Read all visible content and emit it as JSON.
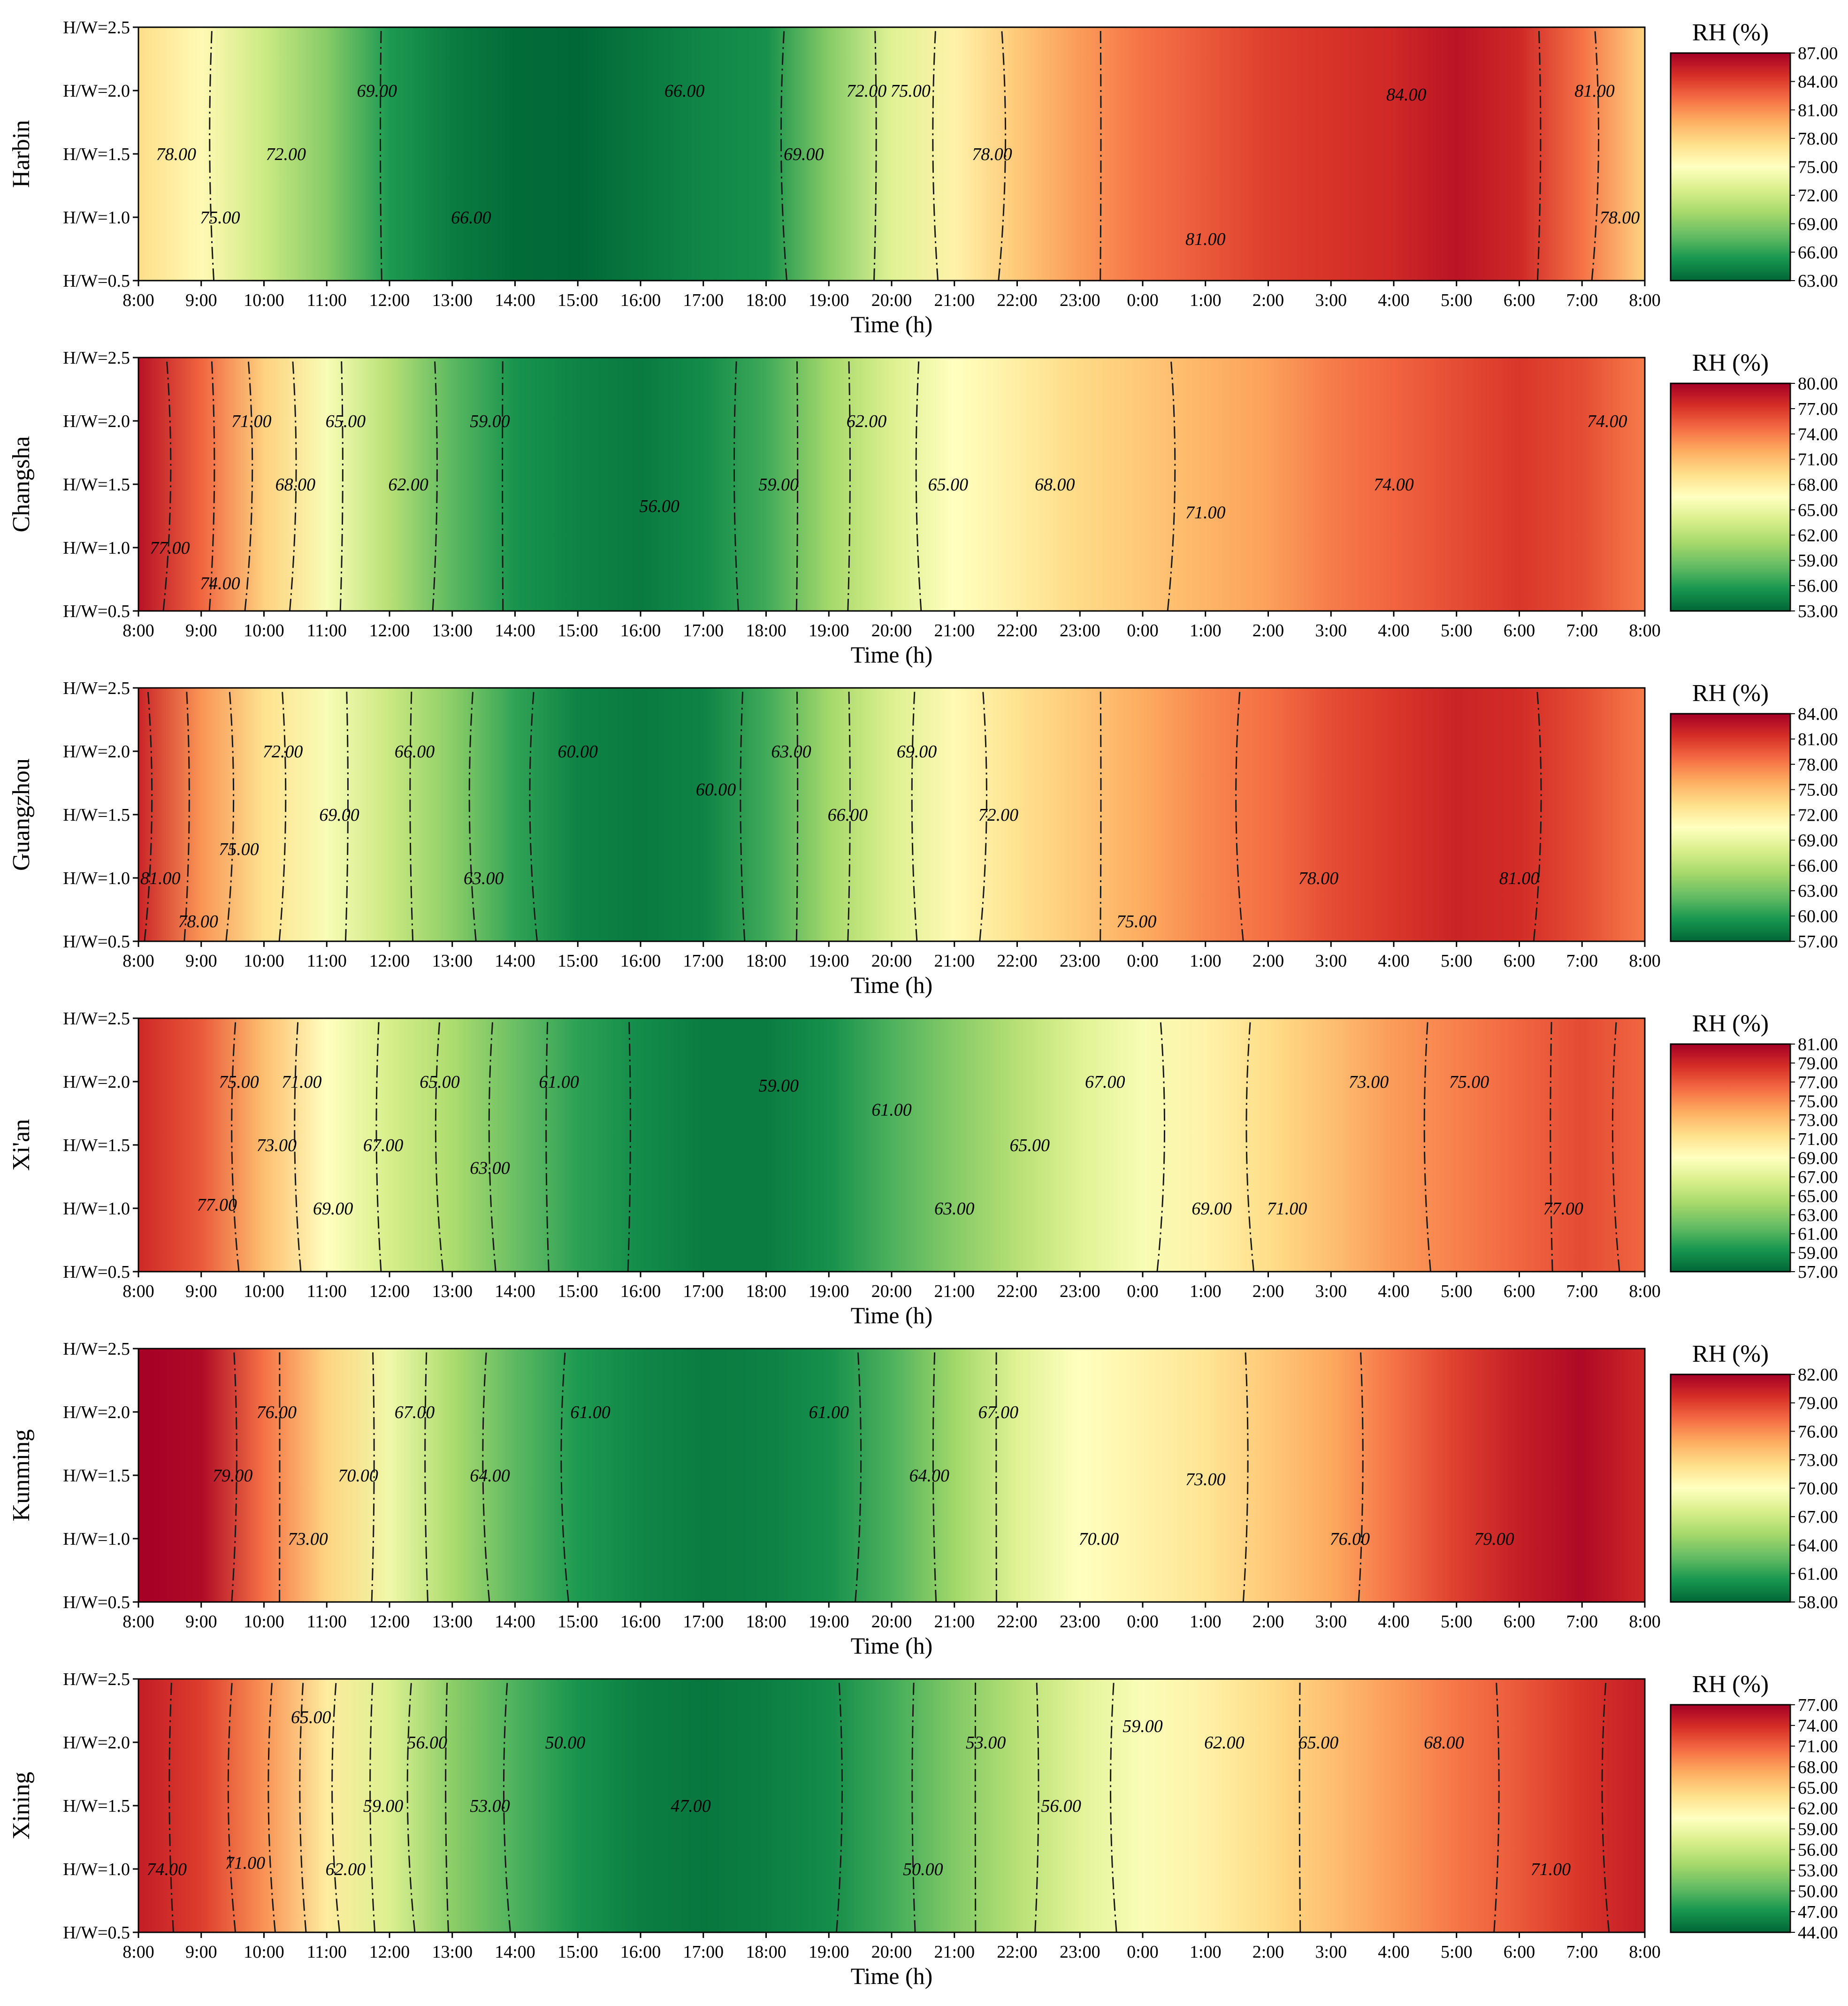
{
  "chart_data": {
    "type": "heatmap",
    "shared_axes": {
      "xlabel": "Time (h)",
      "x_ticks": [
        "8:00",
        "9:00",
        "10:00",
        "11:00",
        "12:00",
        "13:00",
        "14:00",
        "15:00",
        "16:00",
        "17:00",
        "18:00",
        "19:00",
        "20:00",
        "21:00",
        "22:00",
        "23:00",
        "0:00",
        "1:00",
        "2:00",
        "3:00",
        "4:00",
        "5:00",
        "6:00",
        "7:00",
        "8:00"
      ],
      "y_ticks": [
        "H/W=0.5",
        "H/W=1.0",
        "H/W=1.5",
        "H/W=2.0",
        "H/W=2.5"
      ],
      "y_values": [
        0.5,
        1.0,
        1.5,
        2.0,
        2.5
      ],
      "colorbar_title": "RH (%)",
      "colormap": [
        "#006837",
        "#1a9850",
        "#66bd63",
        "#a6d96a",
        "#d9ef8b",
        "#ffffbf",
        "#fee08b",
        "#fdae61",
        "#f46d43",
        "#d73027",
        "#a50026"
      ]
    },
    "panels": [
      {
        "city": "Harbin",
        "range": [
          63,
          87
        ],
        "colorbar_ticks": [
          "63.00",
          "66.00",
          "69.00",
          "72.00",
          "75.00",
          "78.00",
          "81.00",
          "84.00",
          "87.00"
        ],
        "rh_by_hour": [
          77.5,
          75.5,
          72,
          69,
          65.5,
          64,
          63.2,
          63,
          63.8,
          64.5,
          65,
          69,
          73,
          76,
          78.5,
          80.5,
          82,
          83,
          84,
          84.5,
          85,
          86,
          85,
          82,
          78
        ],
        "contour_labels": [
          {
            "text": "69.00",
            "x": 3.8,
            "y": 2.0
          },
          {
            "text": "66.00",
            "x": 8.7,
            "y": 2.0
          },
          {
            "text": "72.00",
            "x": 11.6,
            "y": 2.0
          },
          {
            "text": "75.00",
            "x": 12.3,
            "y": 2.0
          },
          {
            "text": "84.00",
            "x": 20.2,
            "y": 1.97
          },
          {
            "text": "81.00",
            "x": 23.2,
            "y": 2.0
          },
          {
            "text": "78.00",
            "x": 0.6,
            "y": 1.5
          },
          {
            "text": "72.00",
            "x": 2.35,
            "y": 1.5
          },
          {
            "text": "69.00",
            "x": 10.6,
            "y": 1.5
          },
          {
            "text": "78.00",
            "x": 13.6,
            "y": 1.5
          },
          {
            "text": "75.00",
            "x": 1.3,
            "y": 1.0
          },
          {
            "text": "66.00",
            "x": 5.3,
            "y": 1.0
          },
          {
            "text": "81.00",
            "x": 17.0,
            "y": 0.83
          },
          {
            "text": "78.00",
            "x": 23.6,
            "y": 1.0
          }
        ]
      },
      {
        "city": "Changsha",
        "range": [
          53,
          80
        ],
        "colorbar_ticks": [
          "53.00",
          "56.00",
          "59.00",
          "62.00",
          "65.00",
          "68.00",
          "71.00",
          "74.00",
          "77.00",
          "80.00"
        ],
        "rh_by_hour": [
          79,
          75,
          70,
          66,
          62,
          58,
          55.5,
          54.5,
          54,
          55,
          57,
          61,
          64,
          66.5,
          68,
          69.5,
          70.5,
          71.5,
          72.5,
          74,
          75,
          76,
          77,
          76,
          74
        ],
        "contour_labels": [
          {
            "text": "71.00",
            "x": 1.8,
            "y": 2.0
          },
          {
            "text": "65.00",
            "x": 3.3,
            "y": 2.0
          },
          {
            "text": "59.00",
            "x": 5.6,
            "y": 2.0
          },
          {
            "text": "62.00",
            "x": 11.6,
            "y": 2.0
          },
          {
            "text": "74.00",
            "x": 23.4,
            "y": 2.0
          },
          {
            "text": "68.00",
            "x": 2.5,
            "y": 1.5
          },
          {
            "text": "62.00",
            "x": 4.3,
            "y": 1.5
          },
          {
            "text": "59.00",
            "x": 10.2,
            "y": 1.5
          },
          {
            "text": "65.00",
            "x": 12.9,
            "y": 1.5
          },
          {
            "text": "68.00",
            "x": 14.6,
            "y": 1.5
          },
          {
            "text": "74.00",
            "x": 20.0,
            "y": 1.5
          },
          {
            "text": "56.00",
            "x": 8.3,
            "y": 1.33
          },
          {
            "text": "71.00",
            "x": 17.0,
            "y": 1.28
          },
          {
            "text": "77.00",
            "x": 0.5,
            "y": 1.0
          },
          {
            "text": "74.00",
            "x": 1.3,
            "y": 0.72
          }
        ]
      },
      {
        "city": "Guangzhou",
        "range": [
          57,
          84
        ],
        "colorbar_ticks": [
          "57.00",
          "60.00",
          "63.00",
          "66.00",
          "69.00",
          "72.00",
          "75.00",
          "78.00",
          "81.00",
          "84.00"
        ],
        "rh_by_hour": [
          82,
          77,
          73,
          70,
          67,
          64,
          60.5,
          58.5,
          58,
          58.5,
          61,
          65,
          68,
          71,
          73,
          74.5,
          76,
          77.5,
          78.5,
          80,
          81,
          82,
          81.5,
          80,
          78
        ],
        "contour_labels": [
          {
            "text": "72.00",
            "x": 2.3,
            "y": 2.0
          },
          {
            "text": "66.00",
            "x": 4.4,
            "y": 2.0
          },
          {
            "text": "60.00",
            "x": 7.0,
            "y": 2.0
          },
          {
            "text": "63.00",
            "x": 10.4,
            "y": 2.0
          },
          {
            "text": "69.00",
            "x": 12.4,
            "y": 2.0
          },
          {
            "text": "60.00",
            "x": 9.2,
            "y": 1.7
          },
          {
            "text": "69.00",
            "x": 3.2,
            "y": 1.5
          },
          {
            "text": "66.00",
            "x": 11.3,
            "y": 1.5
          },
          {
            "text": "72.00",
            "x": 13.7,
            "y": 1.5
          },
          {
            "text": "75.00",
            "x": 1.6,
            "y": 1.23
          },
          {
            "text": "81.00",
            "x": 0.35,
            "y": 1.0
          },
          {
            "text": "63.00",
            "x": 5.5,
            "y": 1.0
          },
          {
            "text": "78.00",
            "x": 18.8,
            "y": 1.0
          },
          {
            "text": "81.00",
            "x": 22.0,
            "y": 1.0
          },
          {
            "text": "78.00",
            "x": 0.95,
            "y": 0.66
          },
          {
            "text": "75.00",
            "x": 15.9,
            "y": 0.66
          }
        ]
      },
      {
        "city": "Xi'an",
        "range": [
          57,
          81
        ],
        "colorbar_ticks": [
          "57.00",
          "59.00",
          "61.00",
          "63.00",
          "65.00",
          "67.00",
          "69.00",
          "71.00",
          "73.00",
          "75.00",
          "77.00",
          "79.00",
          "81.00"
        ],
        "rh_by_hour": [
          79,
          77,
          73,
          69,
          66.5,
          64.5,
          62,
          60,
          58.8,
          58,
          58,
          59,
          61,
          63,
          65,
          67,
          68.5,
          70,
          71.5,
          73,
          74.5,
          75.5,
          76.5,
          77.5,
          76.5
        ],
        "contour_labels": [
          {
            "text": "75.00",
            "x": 1.6,
            "y": 2.0
          },
          {
            "text": "71.00",
            "x": 2.6,
            "y": 2.0
          },
          {
            "text": "65.00",
            "x": 4.8,
            "y": 2.0
          },
          {
            "text": "61.00",
            "x": 6.7,
            "y": 2.0
          },
          {
            "text": "59.00",
            "x": 10.2,
            "y": 1.97
          },
          {
            "text": "67.00",
            "x": 15.4,
            "y": 2.0
          },
          {
            "text": "73.00",
            "x": 19.6,
            "y": 2.0
          },
          {
            "text": "75.00",
            "x": 21.2,
            "y": 2.0
          },
          {
            "text": "61.00",
            "x": 12.0,
            "y": 1.78
          },
          {
            "text": "73.00",
            "x": 2.2,
            "y": 1.5
          },
          {
            "text": "67.00",
            "x": 3.9,
            "y": 1.5
          },
          {
            "text": "65.00",
            "x": 14.2,
            "y": 1.5
          },
          {
            "text": "63.00",
            "x": 5.6,
            "y": 1.32
          },
          {
            "text": "77.00",
            "x": 1.25,
            "y": 1.03
          },
          {
            "text": "69.00",
            "x": 3.1,
            "y": 1.0
          },
          {
            "text": "63.00",
            "x": 13.0,
            "y": 1.0
          },
          {
            "text": "69.00",
            "x": 17.1,
            "y": 1.0
          },
          {
            "text": "71.00",
            "x": 18.3,
            "y": 1.0
          },
          {
            "text": "77.00",
            "x": 22.7,
            "y": 1.0
          }
        ]
      },
      {
        "city": "Kunming",
        "range": [
          58,
          82
        ],
        "colorbar_ticks": [
          "58.00",
          "61.00",
          "64.00",
          "67.00",
          "70.00",
          "73.00",
          "76.00",
          "79.00",
          "82.00"
        ],
        "rh_by_hour": [
          82,
          81.5,
          77,
          73,
          69,
          65.5,
          62.5,
          60.5,
          59.5,
          59,
          59.2,
          60,
          62,
          65,
          68,
          70,
          71,
          72,
          73.5,
          75,
          77,
          79,
          80.5,
          81.5,
          80
        ],
        "contour_labels": [
          {
            "text": "76.00",
            "x": 2.2,
            "y": 2.0
          },
          {
            "text": "67.00",
            "x": 4.4,
            "y": 2.0
          },
          {
            "text": "61.00",
            "x": 7.2,
            "y": 2.0
          },
          {
            "text": "61.00",
            "x": 11.0,
            "y": 2.0
          },
          {
            "text": "67.00",
            "x": 13.7,
            "y": 2.0
          },
          {
            "text": "79.00",
            "x": 1.5,
            "y": 1.5
          },
          {
            "text": "70.00",
            "x": 3.5,
            "y": 1.5
          },
          {
            "text": "64.00",
            "x": 5.6,
            "y": 1.5
          },
          {
            "text": "64.00",
            "x": 12.6,
            "y": 1.5
          },
          {
            "text": "73.00",
            "x": 17.0,
            "y": 1.47
          },
          {
            "text": "73.00",
            "x": 2.7,
            "y": 1.0
          },
          {
            "text": "70.00",
            "x": 15.3,
            "y": 1.0
          },
          {
            "text": "76.00",
            "x": 19.3,
            "y": 1.0
          },
          {
            "text": "79.00",
            "x": 21.6,
            "y": 1.0
          }
        ]
      },
      {
        "city": "Xining",
        "range": [
          44,
          77
        ],
        "colorbar_ticks": [
          "44.00",
          "47.00",
          "50.00",
          "53.00",
          "56.00",
          "59.00",
          "62.00",
          "65.00",
          "68.00",
          "71.00",
          "74.00",
          "77.00"
        ],
        "rh_by_hour": [
          75,
          73,
          68.5,
          62.5,
          57.5,
          52.5,
          49.5,
          47,
          45.5,
          45,
          45.5,
          46.5,
          49,
          52,
          55,
          58,
          60,
          62,
          64,
          66,
          68,
          70,
          71.5,
          73.5,
          75
        ],
        "contour_labels": [
          {
            "text": "65.00",
            "x": 2.75,
            "y": 2.2
          },
          {
            "text": "59.00",
            "x": 16.0,
            "y": 2.13
          },
          {
            "text": "56.00",
            "x": 4.6,
            "y": 2.0
          },
          {
            "text": "50.00",
            "x": 6.8,
            "y": 2.0
          },
          {
            "text": "53.00",
            "x": 13.5,
            "y": 2.0
          },
          {
            "text": "62.00",
            "x": 17.3,
            "y": 2.0
          },
          {
            "text": "65.00",
            "x": 18.8,
            "y": 2.0
          },
          {
            "text": "68.00",
            "x": 20.8,
            "y": 2.0
          },
          {
            "text": "59.00",
            "x": 3.9,
            "y": 1.5
          },
          {
            "text": "53.00",
            "x": 5.6,
            "y": 1.5
          },
          {
            "text": "47.00",
            "x": 8.8,
            "y": 1.5
          },
          {
            "text": "56.00",
            "x": 14.7,
            "y": 1.5
          },
          {
            "text": "74.00",
            "x": 0.45,
            "y": 1.0
          },
          {
            "text": "71.00",
            "x": 1.7,
            "y": 1.05
          },
          {
            "text": "62.00",
            "x": 3.3,
            "y": 1.0
          },
          {
            "text": "50.00",
            "x": 12.5,
            "y": 1.0
          },
          {
            "text": "71.00",
            "x": 22.5,
            "y": 1.0
          }
        ]
      }
    ]
  }
}
